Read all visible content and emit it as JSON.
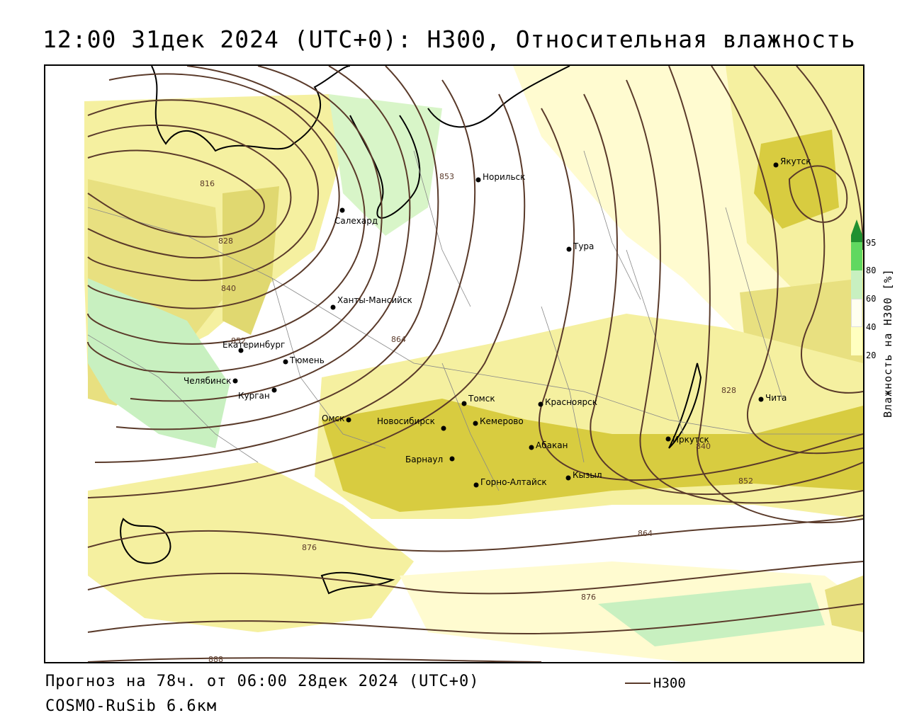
{
  "title": "12:00 31дек 2024 (UTC+0): H300, Относительная влажность",
  "footer": {
    "forecast": "Прогноз на 78ч. от 06:00 28дек 2024 (UTC+0)",
    "model": "COSMO-RuSib 6.6км"
  },
  "legend": {
    "line_label": "H300",
    "line_color": "#5a3a2a"
  },
  "colorbar": {
    "title": "Влажность на H300 [%]",
    "ticks": [
      "20",
      "40",
      "60",
      "80",
      "95"
    ],
    "colors": {
      "20_40": "#ffffc0",
      "40_60": "#fffff0",
      "60_80": "#c8f0c0",
      "80_95": "#60d860",
      "95_plus": "#209030",
      "yellow_low": "#f5f0a0",
      "yellow_mid": "#e8e080",
      "yellow_dark": "#d8cc40"
    }
  },
  "isolines": {
    "labels": [
      "816",
      "828",
      "840",
      "852",
      "853",
      "864",
      "876",
      "888",
      "828",
      "840",
      "852",
      "864",
      "876"
    ]
  },
  "cities": [
    {
      "name": "Салехард"
    },
    {
      "name": "Норильск"
    },
    {
      "name": "Якутск"
    },
    {
      "name": "Тура"
    },
    {
      "name": "Ханты-Мансийск"
    },
    {
      "name": "Екатеринбург"
    },
    {
      "name": "Тюмень"
    },
    {
      "name": "Челябинск"
    },
    {
      "name": "Курган"
    },
    {
      "name": "Омск"
    },
    {
      "name": "Новосибирск"
    },
    {
      "name": "Томск"
    },
    {
      "name": "Кемерово"
    },
    {
      "name": "Красноярск"
    },
    {
      "name": "Барнаул"
    },
    {
      "name": "Абакан"
    },
    {
      "name": "Горно-Алтайск"
    },
    {
      "name": "Кызыл"
    },
    {
      "name": "Иркутск"
    },
    {
      "name": "Чита"
    }
  ]
}
